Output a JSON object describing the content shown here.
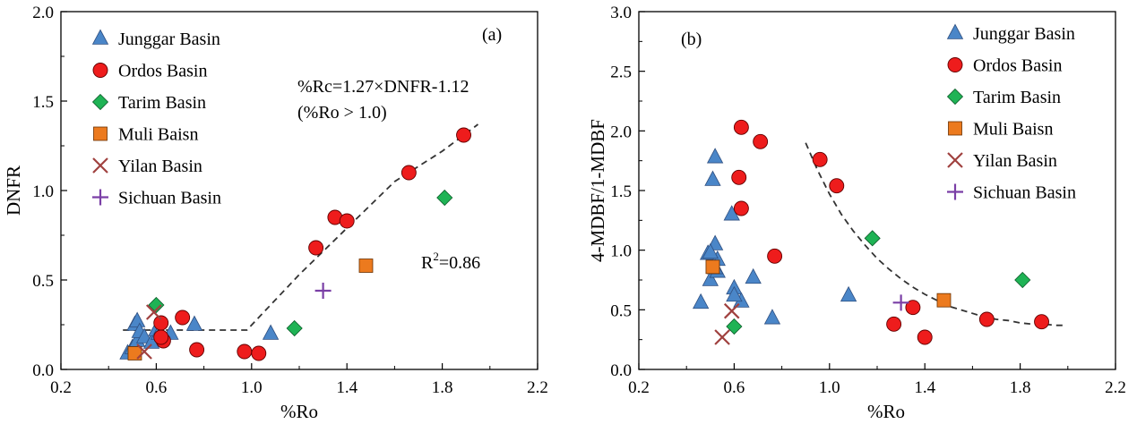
{
  "colors": {
    "triangle": "#4a86c8",
    "triangle_stroke": "#2f4f80",
    "circle": "#ee1c1c",
    "circle_stroke": "#600000",
    "diamond": "#1fb355",
    "diamond_stroke": "#0b5a28",
    "square": "#ec7a1e",
    "square_stroke": "#6a3000",
    "cross": "#a0413f",
    "plus": "#7a3fa6",
    "trend": "#333333"
  },
  "chart_data": [
    {
      "type": "scatter",
      "panel_label": "(a)",
      "xlabel": "%Ro",
      "ylabel": "DNFR",
      "xlim": [
        0.2,
        2.2
      ],
      "ylim": [
        0.0,
        2.0
      ],
      "xticks": [
        0.2,
        0.6,
        1.0,
        1.4,
        1.8,
        2.2
      ],
      "xtick_labels": [
        "0.2",
        "0.6",
        "1.0",
        "1.4",
        "1.8",
        "2.2"
      ],
      "yticks": [
        0.0,
        0.5,
        1.0,
        1.5,
        2.0
      ],
      "ytick_labels": [
        "0.0",
        "0.5",
        "1.0",
        "1.5",
        "2.0"
      ],
      "legend_position": "top-left",
      "annotations": {
        "equation": "%Rc=1.27×DNFR-1.12",
        "condition": "(%Ro > 1.0)",
        "r2_label": "R",
        "r2_sup": "2",
        "r2_value": "=0.86"
      },
      "trend_line": {
        "x": [
          0.46,
          0.62,
          0.8,
          0.98,
          1.2,
          1.4,
          1.6,
          1.8,
          1.95
        ],
        "y": [
          0.22,
          0.22,
          0.22,
          0.22,
          0.53,
          0.79,
          1.05,
          1.22,
          1.37
        ]
      },
      "series": [
        {
          "name": "Junggar Basin",
          "marker": "triangle",
          "x": [
            0.48,
            0.5,
            0.51,
            0.52,
            0.52,
            0.53,
            0.55,
            0.58,
            0.6,
            0.61,
            0.66,
            0.76,
            1.08
          ],
          "y": [
            0.09,
            0.12,
            0.25,
            0.16,
            0.27,
            0.21,
            0.18,
            0.15,
            0.22,
            0.2,
            0.2,
            0.25,
            0.2
          ]
        },
        {
          "name": "Ordos Basin",
          "marker": "circle",
          "x": [
            0.62,
            0.63,
            0.62,
            0.71,
            0.77,
            0.97,
            1.03,
            1.27,
            1.35,
            1.4,
            1.66,
            1.89
          ],
          "y": [
            0.26,
            0.16,
            0.18,
            0.29,
            0.11,
            0.1,
            0.09,
            0.68,
            0.85,
            0.83,
            1.1,
            1.31
          ]
        },
        {
          "name": "Tarim Basin",
          "marker": "diamond",
          "x": [
            0.6,
            1.18,
            1.81
          ],
          "y": [
            0.36,
            0.23,
            0.96
          ]
        },
        {
          "name": "Muli Baisn",
          "marker": "square",
          "x": [
            0.51,
            1.48
          ],
          "y": [
            0.09,
            0.58
          ]
        },
        {
          "name": "Yilan Basin",
          "marker": "cross",
          "x": [
            0.55,
            0.59
          ],
          "y": [
            0.1,
            0.32
          ]
        },
        {
          "name": "Sichuan Basin",
          "marker": "plus",
          "x": [
            1.3
          ],
          "y": [
            0.44
          ]
        }
      ]
    },
    {
      "type": "scatter",
      "panel_label": "(b)",
      "xlabel": "%Ro",
      "ylabel": "4-MDBF/1-MDBF",
      "xlim": [
        0.2,
        2.2
      ],
      "ylim": [
        0.0,
        3.0
      ],
      "xticks": [
        0.2,
        0.6,
        1.0,
        1.4,
        1.8,
        2.2
      ],
      "xtick_labels": [
        "0.2",
        "0.6",
        "1.0",
        "1.4",
        "1.8",
        "2.2"
      ],
      "yticks": [
        0.0,
        0.5,
        1.0,
        1.5,
        2.0,
        2.5,
        3.0
      ],
      "ytick_labels": [
        "0.0",
        "0.5",
        "1.0",
        "1.5",
        "2.0",
        "2.5",
        "3.0"
      ],
      "legend_position": "top-right",
      "trend_line": {
        "x": [
          0.9,
          0.95,
          1.0,
          1.05,
          1.1,
          1.15,
          1.2,
          1.25,
          1.3,
          1.35,
          1.4,
          1.45,
          1.5,
          1.55,
          1.6,
          1.65,
          1.7,
          1.75,
          1.8,
          1.85,
          1.9,
          1.95,
          1.98
        ],
        "y": [
          1.9,
          1.67,
          1.47,
          1.3,
          1.16,
          1.04,
          0.93,
          0.84,
          0.76,
          0.69,
          0.63,
          0.58,
          0.53,
          0.5,
          0.47,
          0.44,
          0.42,
          0.41,
          0.39,
          0.38,
          0.38,
          0.37,
          0.37
        ]
      },
      "series": [
        {
          "name": "Junggar Basin",
          "marker": "triangle",
          "x": [
            0.46,
            0.49,
            0.5,
            0.51,
            0.52,
            0.52,
            0.53,
            0.53,
            0.59,
            0.6,
            0.63,
            0.68,
            0.76,
            1.08,
            0.5,
            0.52,
            0.6
          ],
          "y": [
            0.56,
            0.97,
            0.75,
            1.59,
            1.05,
            1.78,
            0.92,
            0.82,
            1.3,
            0.68,
            0.57,
            0.77,
            0.43,
            0.62,
            0.98,
            0.85,
            0.62
          ]
        },
        {
          "name": "Ordos Basin",
          "marker": "circle",
          "x": [
            0.63,
            0.62,
            0.63,
            0.71,
            0.77,
            0.96,
            1.03,
            1.27,
            1.35,
            1.4,
            1.66,
            1.89
          ],
          "y": [
            2.03,
            1.61,
            1.35,
            1.91,
            0.95,
            1.76,
            1.54,
            0.38,
            0.52,
            0.27,
            0.42,
            0.4
          ]
        },
        {
          "name": "Tarim Basin",
          "marker": "diamond",
          "x": [
            0.6,
            1.18,
            1.81
          ],
          "y": [
            0.36,
            1.1,
            0.75
          ]
        },
        {
          "name": "Muli Baisn",
          "marker": "square",
          "x": [
            0.51,
            1.48
          ],
          "y": [
            0.86,
            0.58
          ]
        },
        {
          "name": "Yilan Basin",
          "marker": "cross",
          "x": [
            0.55,
            0.59
          ],
          "y": [
            0.27,
            0.49
          ]
        },
        {
          "name": "Sichuan Basin",
          "marker": "plus",
          "x": [
            1.3
          ],
          "y": [
            0.56
          ]
        }
      ]
    }
  ]
}
